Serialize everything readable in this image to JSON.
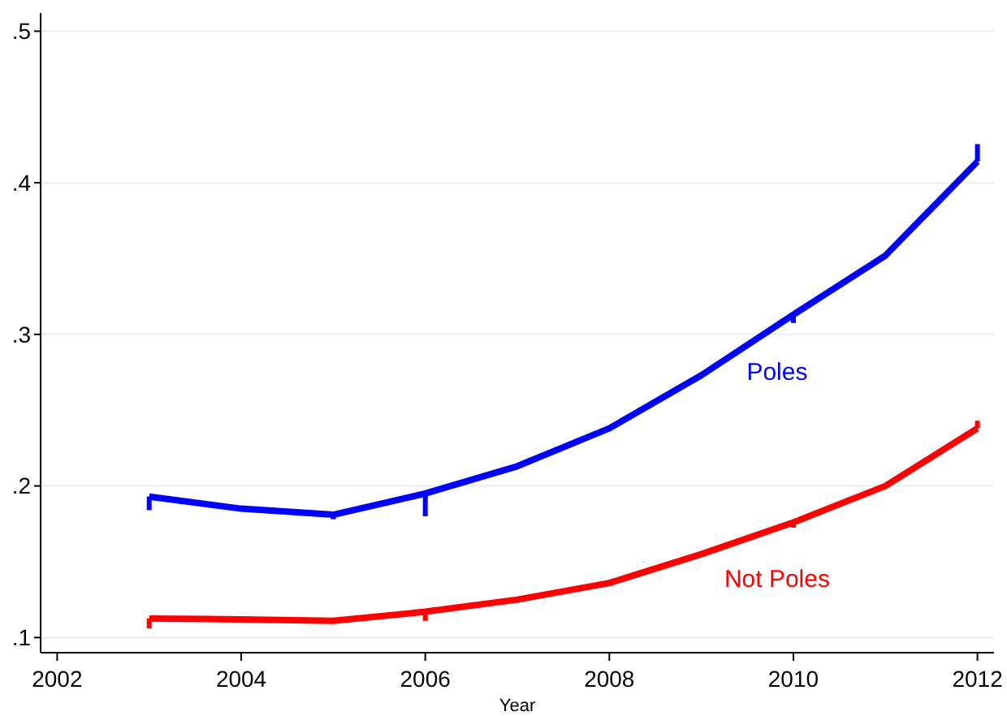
{
  "chart_data": {
    "type": "line",
    "xlabel": "Year",
    "x": [
      2003,
      2004,
      2005,
      2006,
      2007,
      2008,
      2009,
      2010,
      2011,
      2012
    ],
    "series": [
      {
        "name": "Poles",
        "color": "#0000ff",
        "values": [
          0.193,
          0.185,
          0.181,
          0.195,
          0.213,
          0.238,
          0.273,
          0.313,
          0.352,
          0.414
        ],
        "errors": [
          [
            0.184,
            0.193
          ],
          null,
          [
            0.178,
            0.181
          ],
          [
            0.18,
            0.195
          ],
          null,
          null,
          null,
          [
            0.3075,
            0.313
          ],
          null,
          [
            0.414,
            0.4255
          ]
        ]
      },
      {
        "name": "Not Poles",
        "color": "#ff0000",
        "values": [
          0.1125,
          0.112,
          0.111,
          0.117,
          0.125,
          0.136,
          0.155,
          0.176,
          0.2,
          0.238
        ],
        "errors": [
          [
            0.106,
            0.1125
          ],
          null,
          null,
          [
            0.111,
            0.117
          ],
          null,
          null,
          null,
          [
            0.1725,
            0.176
          ],
          null,
          [
            0.238,
            0.243
          ]
        ]
      }
    ],
    "xlim": [
      2001.82,
      2012.18
    ],
    "xticks": [
      2002,
      2004,
      2006,
      2008,
      2010,
      2012
    ],
    "ylim": [
      0.09,
      0.512
    ],
    "yticks": [
      {
        "value": 0.1,
        "label": ".1"
      },
      {
        "value": 0.2,
        "label": ".2"
      },
      {
        "value": 0.3,
        "label": ".3"
      },
      {
        "value": 0.4,
        "label": ".4"
      },
      {
        "value": 0.5,
        "label": ".5"
      }
    ],
    "grid": "y",
    "legend": false,
    "marker": "none",
    "line_style": "solid"
  }
}
